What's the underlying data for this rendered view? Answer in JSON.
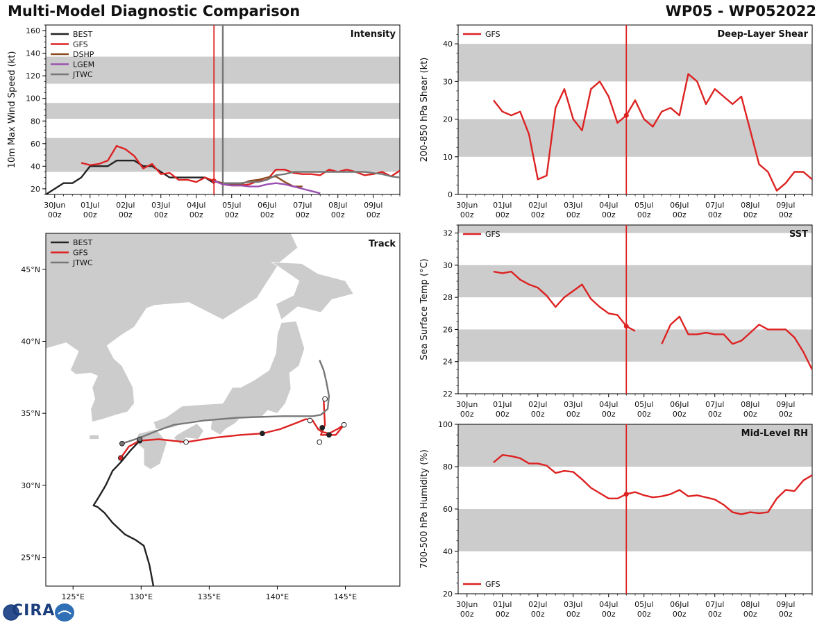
{
  "header": {
    "title": "Multi-Model Diagnostic Comparison",
    "storm_id": "WP05 - WP052022"
  },
  "logo": {
    "text": "CIRA"
  },
  "colors": {
    "BEST": "#222222",
    "GFS": "#dd2222",
    "DSHP": "#8b4a1f",
    "LGEM": "#9b4fb0",
    "JTWC": "#777777",
    "band": "#cccccc",
    "land": "#cccccc",
    "init_line": "#dd2222"
  },
  "time_axis": {
    "ticks": [
      "30Jun\n00z",
      "01Jul\n00z",
      "02Jul\n00z",
      "03Jul\n00z",
      "04Jul\n00z",
      "05Jul\n00z",
      "06Jul\n00z",
      "07Jul\n00z",
      "08Jul\n00z",
      "09Jul\n00z"
    ],
    "xlim_hours": [
      -6,
      234
    ],
    "init_hour": 108
  },
  "chart_data": [
    {
      "id": "intensity",
      "type": "line",
      "title": "Intensity",
      "ylabel": "10m Max Wind Speed (kt)",
      "ylim": [
        15,
        165
      ],
      "yticks": [
        20,
        40,
        60,
        80,
        100,
        120,
        140,
        160
      ],
      "bands": [
        [
          35,
          65
        ],
        [
          82,
          96
        ],
        [
          113,
          137
        ]
      ],
      "extra_vlines": [
        {
          "name": "JTWC",
          "hour": 114
        }
      ],
      "legend": [
        "BEST",
        "GFS",
        "DSHP",
        "LGEM",
        "JTWC"
      ],
      "series": [
        {
          "name": "BEST",
          "x": [
            -6,
            0,
            6,
            12,
            18,
            24,
            30,
            36,
            42,
            48,
            54,
            60,
            66,
            72,
            78,
            84,
            90,
            96,
            102,
            108
          ],
          "y": [
            15,
            20,
            25,
            25,
            30,
            40,
            40,
            40,
            45,
            45,
            45,
            40,
            40,
            35,
            30,
            30,
            30,
            30,
            30,
            25
          ]
        },
        {
          "name": "GFS",
          "x": [
            18,
            24,
            30,
            36,
            42,
            48,
            54,
            60,
            66,
            72,
            78,
            84,
            90,
            96,
            102,
            108,
            114,
            120,
            126,
            132,
            138,
            144,
            150,
            156,
            162,
            168,
            174,
            180,
            186,
            192,
            198,
            204,
            210,
            216,
            222,
            228,
            234
          ],
          "y": [
            43,
            41,
            42,
            45,
            58,
            55,
            49,
            38,
            42,
            33,
            34,
            28,
            28,
            26,
            30,
            27,
            24,
            23,
            23,
            24,
            27,
            28,
            37,
            37,
            34,
            33,
            33,
            32,
            37,
            35,
            37,
            35,
            32,
            33,
            35,
            31,
            36
          ]
        },
        {
          "name": "DSHP",
          "x": [
            108,
            114,
            120,
            126,
            132,
            138,
            144,
            150,
            156,
            162,
            168
          ],
          "y": [
            27,
            25,
            24,
            24,
            27,
            28,
            30,
            31,
            26,
            22,
            22
          ]
        },
        {
          "name": "LGEM",
          "x": [
            108,
            114,
            120,
            126,
            132,
            138,
            144,
            150,
            156,
            162,
            168,
            174,
            180
          ],
          "y": [
            27,
            24,
            23,
            23,
            22,
            22,
            24,
            25,
            24,
            22,
            20,
            18,
            16
          ]
        },
        {
          "name": "JTWC",
          "x": [
            114,
            120,
            126,
            132,
            138,
            144,
            150,
            156,
            162,
            168,
            174,
            180,
            186,
            192,
            198,
            204,
            210,
            216,
            222,
            228,
            234
          ],
          "y": [
            25,
            25,
            25,
            26,
            26,
            28,
            32,
            33,
            35,
            35,
            35,
            35,
            35,
            35,
            35,
            35,
            35,
            34,
            33,
            31,
            30
          ]
        }
      ]
    },
    {
      "id": "shear",
      "type": "line",
      "title": "Deep-Layer Shear",
      "ylabel": "200-850 hPa Shear (kt)",
      "ylim": [
        0,
        45
      ],
      "yticks": [
        0,
        10,
        20,
        30,
        40
      ],
      "bands": [
        [
          10,
          20
        ],
        [
          30,
          40
        ]
      ],
      "legend": [
        "GFS"
      ],
      "series": [
        {
          "name": "GFS",
          "x": [
            18,
            24,
            30,
            36,
            42,
            48,
            54,
            60,
            66,
            72,
            78,
            84,
            90,
            96,
            102,
            108,
            114,
            120,
            126,
            132,
            138,
            144,
            150,
            156,
            162,
            168,
            174,
            180,
            186,
            192,
            198,
            204,
            210,
            216,
            222,
            228,
            234
          ],
          "y": [
            25,
            22,
            21,
            22,
            16,
            4,
            5,
            23,
            28,
            20,
            17,
            28,
            30,
            26,
            19,
            21,
            25,
            20,
            18,
            22,
            23,
            21,
            32,
            30,
            24,
            28,
            26,
            24,
            26,
            17,
            8,
            6,
            1,
            3,
            6,
            6,
            4
          ]
        }
      ]
    },
    {
      "id": "sst",
      "type": "line",
      "title": "SST",
      "ylabel": "Sea Surface Temp (°C)",
      "ylim": [
        22,
        32.5
      ],
      "yticks": [
        22,
        24,
        26,
        28,
        30,
        32
      ],
      "bands": [
        [
          24,
          26
        ],
        [
          28,
          30
        ],
        [
          32,
          32.5
        ]
      ],
      "legend": [
        "GFS"
      ],
      "series": [
        {
          "name": "GFS",
          "x": [
            18,
            24,
            30,
            36,
            42,
            48,
            54,
            60,
            66,
            72,
            78,
            84,
            90,
            96,
            102,
            108,
            114
          ],
          "y": [
            29.6,
            29.5,
            29.6,
            29.1,
            28.8,
            28.6,
            28.1,
            27.4,
            28.0,
            28.4,
            28.8,
            27.9,
            27.4,
            27.0,
            26.9,
            26.2,
            25.9
          ]
        },
        {
          "name": "GFS",
          "x": [
            132,
            138,
            144,
            150,
            156,
            162,
            168,
            174,
            180,
            186,
            192,
            198,
            204,
            210,
            216,
            222,
            228,
            234
          ],
          "y": [
            25.1,
            26.3,
            26.8,
            25.7,
            25.7,
            25.8,
            25.7,
            25.7,
            25.1,
            25.3,
            25.8,
            26.3,
            26.0,
            26.0,
            26.0,
            25.5,
            24.6,
            23.5
          ]
        }
      ]
    },
    {
      "id": "rh",
      "type": "line",
      "title": "Mid-Level RH",
      "ylabel": "700-500 hPa Humidity (%)",
      "ylim": [
        20,
        100
      ],
      "yticks": [
        20,
        40,
        60,
        80,
        100
      ],
      "bands": [
        [
          40,
          60
        ],
        [
          80,
          100
        ]
      ],
      "legend": [
        "GFS"
      ],
      "series": [
        {
          "name": "GFS",
          "x": [
            18,
            24,
            30,
            36,
            42,
            48,
            54,
            60,
            66,
            72,
            78,
            84,
            90,
            96,
            102,
            108,
            114,
            120,
            126,
            132,
            138,
            144,
            150,
            156,
            162,
            168,
            174,
            180,
            186,
            192,
            198,
            204,
            210,
            216,
            222,
            228,
            234
          ],
          "y": [
            82,
            85.5,
            85,
            84,
            81.5,
            81.5,
            80.5,
            77,
            78,
            77.5,
            74,
            70,
            67.5,
            65,
            65,
            67,
            68,
            66.5,
            65.5,
            66,
            67,
            69,
            66,
            66.5,
            65.5,
            64.5,
            62,
            58.5,
            57.5,
            58.5,
            58,
            58.5,
            65,
            69,
            68.5,
            73.5,
            76
          ]
        }
      ]
    },
    {
      "id": "track",
      "type": "line",
      "title": "Track",
      "xlim": [
        123,
        149
      ],
      "ylim": [
        23,
        47.5
      ],
      "xtick_labels": [
        "125°E",
        "130°E",
        "135°E",
        "140°E",
        "145°E"
      ],
      "xtick_values": [
        125,
        130,
        135,
        140,
        145
      ],
      "ytick_labels": [
        "25°N",
        "30°N",
        "35°N",
        "40°N",
        "45°N"
      ],
      "ytick_values": [
        25,
        30,
        35,
        40,
        45
      ],
      "legend": [
        "BEST",
        "GFS",
        "JTWC"
      ],
      "series": [
        {
          "name": "BEST",
          "lon": [
            130.9,
            130.6,
            130.2,
            129.6,
            128.8,
            127.9,
            127.3,
            126.8,
            126.5,
            126.9,
            127.4,
            127.9,
            128.5,
            129.2,
            129.9
          ],
          "lat": [
            23.0,
            24.5,
            25.8,
            26.2,
            26.6,
            27.4,
            28.1,
            28.5,
            28.6,
            29.2,
            30.0,
            31.0,
            31.6,
            32.4,
            33.1
          ]
        },
        {
          "name": "GFS",
          "lon": [
            128.5,
            129.1,
            129.9,
            131.3,
            133.3,
            135.3,
            137.3,
            138.9,
            140.2,
            141.3,
            142.1,
            142.6,
            143.0,
            143.3,
            143.8,
            144.4,
            144.9,
            144.3,
            143.8,
            143.2,
            143.5,
            143.4
          ],
          "lat": [
            31.9,
            32.7,
            33.1,
            33.2,
            33.0,
            33.3,
            33.5,
            33.6,
            33.9,
            34.3,
            34.6,
            34.5,
            33.9,
            33.7,
            33.6,
            33.9,
            34.2,
            33.5,
            33.5,
            33.5,
            34.2,
            36.0
          ],
          "markers": [
            [
              128.5,
              31.9,
              "f"
            ],
            [
              129.9,
              33.1,
              "f"
            ],
            [
              133.3,
              33.0,
              "o"
            ],
            [
              138.9,
              33.6,
              "f"
            ],
            [
              142.4,
              34.5,
              "o"
            ],
            [
              143.3,
              34.0,
              "f"
            ],
            [
              143.8,
              33.5,
              "f"
            ],
            [
              144.9,
              34.2,
              "o"
            ],
            [
              143.1,
              33.0,
              "o"
            ],
            [
              143.5,
              36.0,
              "o"
            ]
          ]
        },
        {
          "name": "JTWC",
          "lon": [
            128.6,
            129.9,
            131.2,
            132.4,
            134.6,
            137.1,
            140.4,
            142.6,
            143.2,
            143.7,
            143.8,
            143.6,
            143.4,
            143.1
          ],
          "lat": [
            32.9,
            33.3,
            33.8,
            34.2,
            34.5,
            34.7,
            34.8,
            34.8,
            34.9,
            35.3,
            36.2,
            37.2,
            38.0,
            38.7
          ],
          "markers": [
            [
              128.6,
              32.9,
              "f"
            ],
            [
              129.9,
              33.2,
              "f"
            ]
          ]
        }
      ]
    }
  ]
}
